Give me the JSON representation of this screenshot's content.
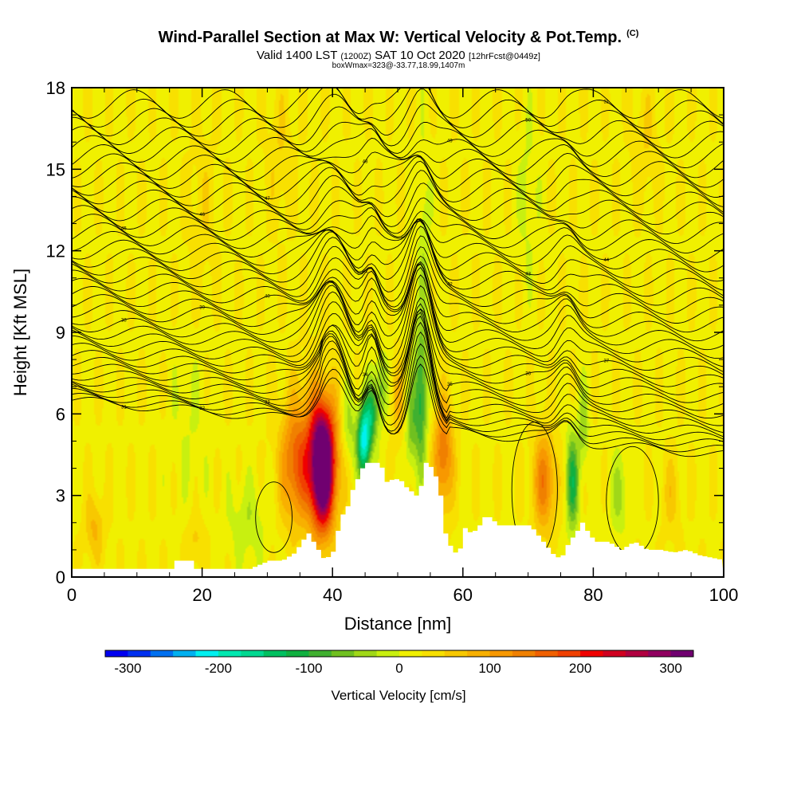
{
  "header": {
    "title": "Wind-Parallel Section at Max W: Vertical Velocity & Pot.Temp.",
    "copyright": "(C)",
    "valid_main": "Valid 1400 LST",
    "valid_utc": "(1200Z)",
    "valid_date": "SAT 10 Oct 2020",
    "forecast": "[12hrFcst@0449z]",
    "boxinfo": "boxWmax=323@-33.77,18.99,1407m"
  },
  "chart_data": {
    "type": "heatmap",
    "title": "Wind-Parallel Section at Max W: Vertical Velocity & Pot.Temp.",
    "xlabel": "Distance [nm]",
    "ylabel": "Height [Kft MSL]",
    "xlim": [
      0,
      100
    ],
    "ylim": [
      0,
      18
    ],
    "xticks": [
      "0",
      "20",
      "40",
      "60",
      "80",
      "100"
    ],
    "yticks": [
      "0",
      "3",
      "6",
      "9",
      "12",
      "15",
      "18"
    ],
    "xtick_values": [
      0,
      20,
      40,
      60,
      80,
      100
    ],
    "ytick_values": [
      0,
      3,
      6,
      9,
      12,
      15,
      18
    ],
    "background_w": 20,
    "w_features": [
      {
        "x": 38.5,
        "y": 4.0,
        "sx": 1.8,
        "sy": 2.2,
        "w": 330
      },
      {
        "x": 37.0,
        "y": 4.5,
        "sx": 4.0,
        "sy": 2.5,
        "w": 120
      },
      {
        "x": 34.0,
        "y": 4.0,
        "sx": 2.0,
        "sy": 2.0,
        "w": 80
      },
      {
        "x": 44.8,
        "y": 5.0,
        "sx": 1.0,
        "sy": 1.3,
        "w": -230
      },
      {
        "x": 46.0,
        "y": 6.0,
        "sx": 1.0,
        "sy": 1.2,
        "w": -120
      },
      {
        "x": 47.5,
        "y": 7.0,
        "sx": 0.9,
        "sy": 1.2,
        "w": -80
      },
      {
        "x": 42.5,
        "y": 5.5,
        "sx": 1.2,
        "sy": 1.5,
        "w": -60
      },
      {
        "x": 53.5,
        "y": 6.5,
        "sx": 1.0,
        "sy": 2.5,
        "w": -130
      },
      {
        "x": 52.0,
        "y": 5.5,
        "sx": 0.8,
        "sy": 1.5,
        "w": -70
      },
      {
        "x": 57.0,
        "y": 4.5,
        "sx": 1.5,
        "sy": 2.0,
        "w": 130
      },
      {
        "x": 50.0,
        "y": 6.5,
        "sx": 1.0,
        "sy": 1.5,
        "w": 60
      },
      {
        "x": 72.5,
        "y": 3.5,
        "sx": 1.8,
        "sy": 1.8,
        "w": 120
      },
      {
        "x": 76.8,
        "y": 3.5,
        "sx": 1.0,
        "sy": 1.8,
        "w": -130
      },
      {
        "x": 78.5,
        "y": 5.5,
        "sx": 0.8,
        "sy": 1.5,
        "w": -60
      },
      {
        "x": 27.0,
        "y": 2.0,
        "sx": 3.0,
        "sy": 1.5,
        "w": -40
      },
      {
        "x": 18.0,
        "y": 5.5,
        "sx": 3.0,
        "sy": 3.0,
        "w": -20
      },
      {
        "x": 3.5,
        "y": 1.8,
        "sx": 1.5,
        "sy": 1.2,
        "w": 60
      },
      {
        "x": 19.0,
        "y": 1.3,
        "sx": 1.5,
        "sy": 1.0,
        "w": 40
      },
      {
        "x": 84.0,
        "y": 3.0,
        "sx": 1.5,
        "sy": 1.5,
        "w": -50
      },
      {
        "x": 92.0,
        "y": 3.0,
        "sx": 1.5,
        "sy": 1.5,
        "w": 40
      },
      {
        "x": 54.0,
        "y": 12.0,
        "sx": 1.0,
        "sy": 4.0,
        "w": -40
      },
      {
        "x": 20.0,
        "y": 13.5,
        "sx": 2.0,
        "sy": 3.0,
        "w": 25
      },
      {
        "x": 32.0,
        "y": 15.5,
        "sx": 2.0,
        "sy": 2.5,
        "w": 30
      },
      {
        "x": 70.0,
        "y": 14.0,
        "sx": 1.5,
        "sy": 3.0,
        "w": -30
      },
      {
        "x": 88.0,
        "y": 16.0,
        "sx": 2.0,
        "sy": 2.0,
        "w": 30
      }
    ],
    "terrain_profile": {
      "x": [
        0,
        15,
        15.2,
        18,
        18.2,
        27,
        30,
        32,
        34,
        35,
        36,
        37,
        38,
        38.5,
        40,
        40.5,
        41,
        42,
        42.5,
        43,
        44,
        44.5,
        45,
        46,
        47,
        48,
        49,
        50,
        51,
        52,
        53,
        53.5,
        54,
        55,
        56,
        56.5,
        57,
        58,
        59,
        60,
        61,
        62,
        63,
        64,
        65,
        66,
        68,
        70,
        71,
        72,
        73,
        74,
        75,
        76,
        77,
        78,
        79,
        80,
        82,
        84,
        86,
        88,
        90,
        92,
        94,
        96,
        98,
        100
      ],
      "height": [
        0.3,
        0.3,
        0.6,
        0.6,
        0.3,
        0.3,
        0.6,
        0.6,
        0.9,
        1.3,
        1.6,
        1.2,
        0.8,
        0.6,
        1.0,
        1.7,
        2.2,
        2.6,
        3.0,
        3.4,
        3.8,
        4.2,
        4.2,
        4.2,
        4.2,
        3.5,
        3.6,
        3.6,
        3.3,
        3.1,
        2.9,
        3.8,
        4.2,
        4.0,
        3.4,
        2.6,
        1.6,
        1.0,
        0.8,
        1.8,
        1.6,
        1.8,
        2.2,
        2.2,
        1.9,
        1.9,
        1.9,
        1.9,
        1.6,
        1.3,
        1.0,
        0.7,
        0.8,
        1.3,
        1.6,
        2.0,
        1.6,
        1.3,
        1.3,
        1.0,
        1.3,
        1.0,
        1.0,
        0.9,
        1.0,
        0.8,
        0.7,
        0.6
      ]
    },
    "theta_isentropes": {
      "count": 42,
      "base_height": 6.5,
      "top_height": 17.4,
      "label_values": [
        "31",
        "32",
        "33",
        "34",
        "35",
        "36",
        "37",
        "38",
        "39",
        "40",
        "41",
        "42",
        "43",
        "44",
        "45",
        "46",
        "47",
        "48",
        "49",
        "50"
      ]
    },
    "w_zero_contours": [
      {
        "cx": 31.0,
        "cy": 2.2,
        "rx": 2.8,
        "ry": 1.3
      },
      {
        "cx": 71.0,
        "cy": 3.2,
        "rx": 3.5,
        "ry": 2.5
      },
      {
        "cx": 86.0,
        "cy": 2.8,
        "rx": 4.0,
        "ry": 2.0
      }
    ],
    "colorbar": {
      "label": "Vertical Velocity [cm/s]",
      "range": [
        -325,
        325
      ],
      "tick_labels": [
        "-300",
        "-200",
        "-100",
        "0",
        "100",
        "200",
        "300"
      ],
      "tick_values": [
        -300,
        -200,
        -100,
        0,
        100,
        200,
        300
      ],
      "colors": [
        "#0000f0",
        "#0030f0",
        "#0070f0",
        "#00b0f0",
        "#00f0f0",
        "#00e8b0",
        "#00d890",
        "#00c060",
        "#10b040",
        "#40b030",
        "#70c020",
        "#a0d818",
        "#c8f010",
        "#f0f000",
        "#f8e000",
        "#f8c800",
        "#f8b000",
        "#f89800",
        "#f08000",
        "#f06000",
        "#f04000",
        "#f00000",
        "#d00020",
        "#b00040",
        "#900060",
        "#700070"
      ]
    }
  }
}
